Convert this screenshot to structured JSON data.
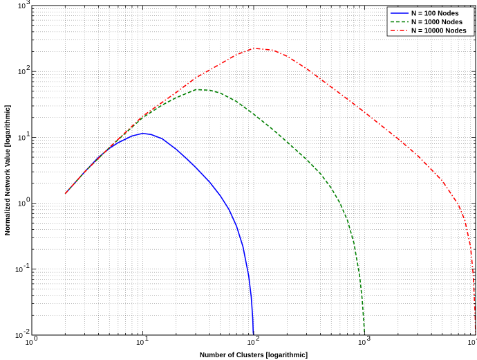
{
  "chart_data": {
    "type": "line",
    "title": "",
    "xlabel": "Number of Clusters [logarithmic]",
    "ylabel": "Normalized Network Value [logarithmic]",
    "xscale": "log",
    "yscale": "log",
    "xlim": [
      1,
      10000
    ],
    "ylim": [
      0.01,
      1000
    ],
    "grid": true,
    "legend_position": "top-right",
    "x_ticks": [
      {
        "value": 1,
        "base": "10",
        "exp": "0"
      },
      {
        "value": 10,
        "base": "10",
        "exp": "1"
      },
      {
        "value": 100,
        "base": "10",
        "exp": "2"
      },
      {
        "value": 1000,
        "base": "10",
        "exp": "3"
      },
      {
        "value": 10000,
        "base": "10",
        "exp": "4"
      }
    ],
    "y_ticks": [
      {
        "value": 0.01,
        "base": "10",
        "exp": "-2"
      },
      {
        "value": 0.1,
        "base": "10",
        "exp": "-1"
      },
      {
        "value": 1,
        "base": "10",
        "exp": "0"
      },
      {
        "value": 10,
        "base": "10",
        "exp": "1"
      },
      {
        "value": 100,
        "base": "10",
        "exp": "2"
      },
      {
        "value": 1000,
        "base": "10",
        "exp": "3"
      }
    ],
    "series": [
      {
        "name": "N = 100 Nodes",
        "color": "#0000ff",
        "style": "solid",
        "x": [
          2,
          3,
          4,
          5,
          6,
          8,
          10,
          12,
          15,
          20,
          25,
          30,
          40,
          50,
          60,
          70,
          80,
          90,
          95,
          98,
          99,
          100
        ],
        "y": [
          1.4,
          3.0,
          5.0,
          6.8,
          8.3,
          10.5,
          11.5,
          11.0,
          9.5,
          6.6,
          4.7,
          3.5,
          2.1,
          1.3,
          0.8,
          0.45,
          0.22,
          0.08,
          0.038,
          0.018,
          0.011,
          0.01
        ]
      },
      {
        "name": "N = 1000 Nodes",
        "color": "#007f00",
        "style": "dashed",
        "x": [
          2,
          3,
          5,
          10,
          15,
          20,
          30,
          40,
          50,
          70,
          100,
          150,
          200,
          300,
          400,
          500,
          600,
          700,
          800,
          900,
          950,
          990,
          1000
        ],
        "y": [
          1.4,
          3.0,
          7.0,
          20.0,
          31.0,
          40.0,
          53.0,
          52.0,
          47.0,
          35.0,
          22.5,
          13.0,
          8.5,
          4.6,
          2.8,
          1.7,
          1.0,
          0.55,
          0.25,
          0.08,
          0.035,
          0.013,
          0.01
        ]
      },
      {
        "name": "N = 10000 Nodes",
        "color": "#ff0000",
        "style": "dashdot",
        "x": [
          2,
          3,
          5,
          10,
          20,
          30,
          50,
          70,
          100,
          150,
          200,
          300,
          500,
          700,
          1000,
          2000,
          3000,
          5000,
          7000,
          8000,
          9000,
          9500,
          9900,
          10000
        ],
        "y": [
          1.4,
          3.0,
          7.0,
          21.0,
          48.0,
          80.0,
          130.0,
          180.0,
          225.0,
          210.0,
          170.0,
          110.0,
          58.0,
          38.0,
          24.0,
          9.5,
          5.3,
          2.2,
          0.95,
          0.55,
          0.22,
          0.085,
          0.02,
          0.01
        ]
      }
    ]
  }
}
